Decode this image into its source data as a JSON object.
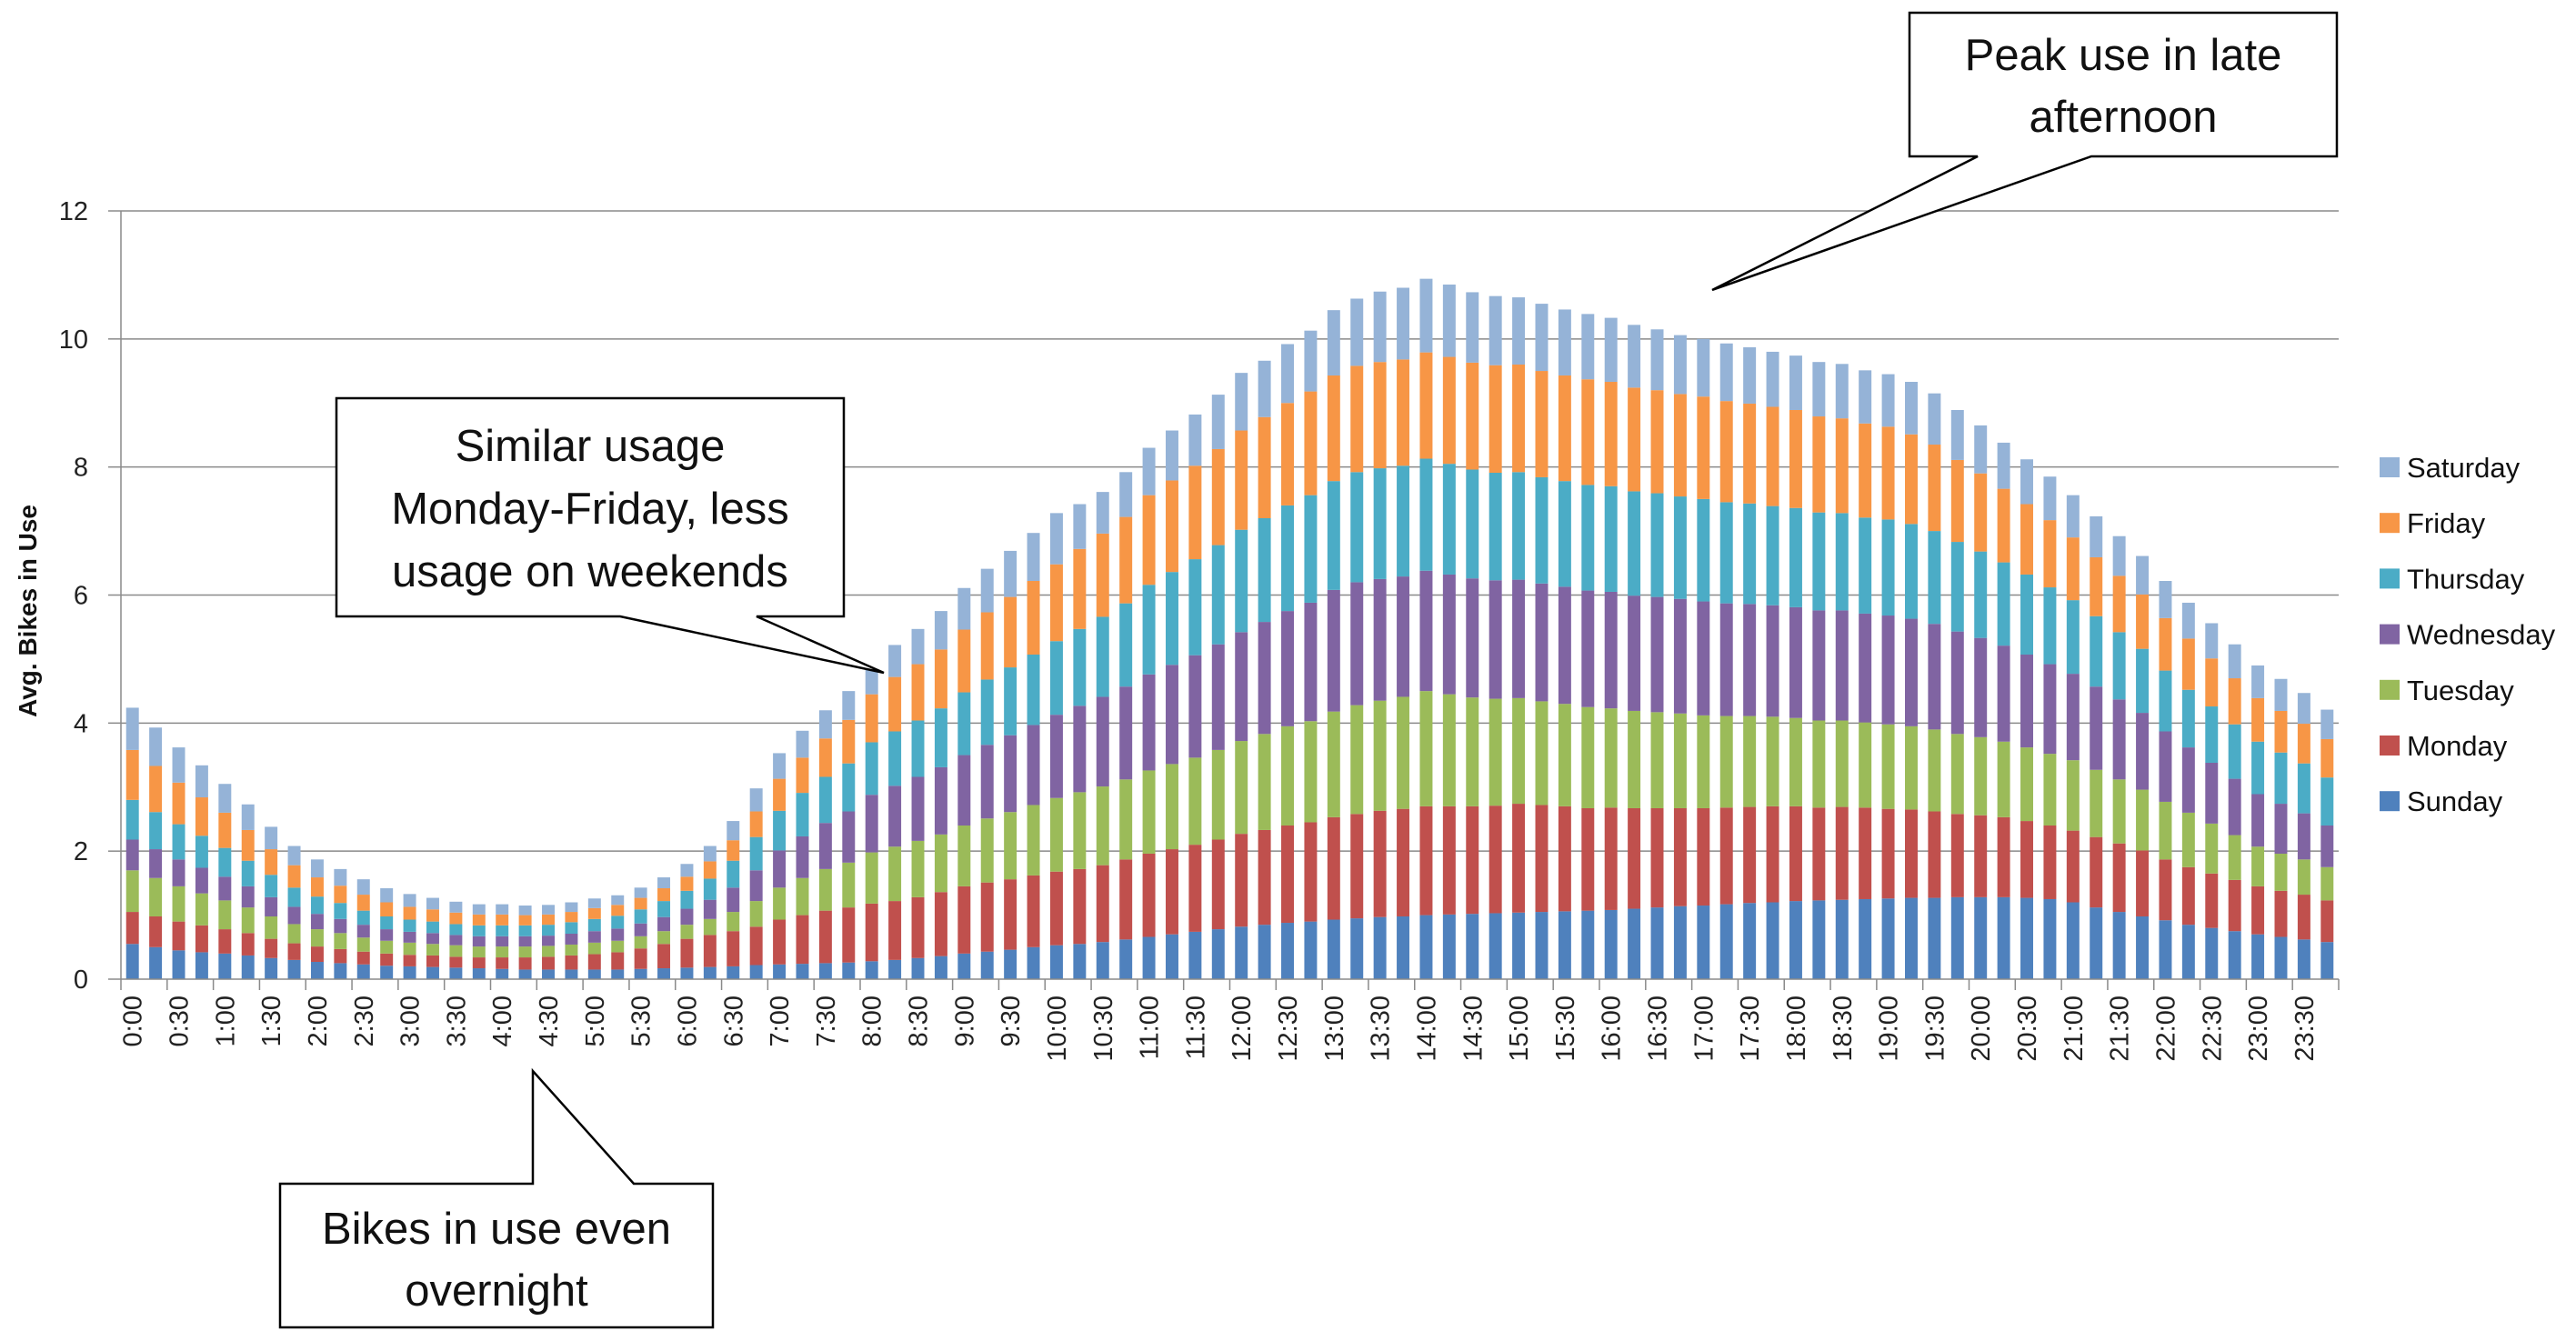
{
  "chart_data": {
    "type": "bar",
    "stacked": true,
    "title": "",
    "xlabel": "",
    "ylabel": "Avg. Bikes in Use",
    "ylim": [
      0,
      12
    ],
    "yticks": [
      0,
      2,
      4,
      6,
      8,
      10,
      12
    ],
    "grid": true,
    "legend_position": "right",
    "x_tick_labels": [
      "0:00",
      "0:30",
      "1:00",
      "1:30",
      "2:00",
      "2:30",
      "3:00",
      "3:30",
      "4:00",
      "4:30",
      "5:00",
      "5:30",
      "6:00",
      "6:30",
      "7:00",
      "7:30",
      "8:00",
      "8:30",
      "9:00",
      "9:30",
      "10:00",
      "10:30",
      "11:00",
      "11:30",
      "12:00",
      "12:30",
      "13:00",
      "13:30",
      "14:00",
      "14:30",
      "15:00",
      "15:30",
      "16:00",
      "16:30",
      "17:00",
      "17:30",
      "18:00",
      "18:30",
      "19:00",
      "19:30",
      "20:00",
      "20:30",
      "21:00",
      "21:30",
      "22:00",
      "22:30",
      "23:00",
      "23:30"
    ],
    "categories": [
      "0:00",
      "0:15",
      "0:30",
      "0:45",
      "1:00",
      "1:15",
      "1:30",
      "1:45",
      "2:00",
      "2:15",
      "2:30",
      "2:45",
      "3:00",
      "3:15",
      "3:30",
      "3:45",
      "4:00",
      "4:15",
      "4:30",
      "4:45",
      "5:00",
      "5:15",
      "5:30",
      "5:45",
      "6:00",
      "6:15",
      "6:30",
      "6:45",
      "7:00",
      "7:15",
      "7:30",
      "7:45",
      "8:00",
      "8:15",
      "8:30",
      "8:45",
      "9:00",
      "9:15",
      "9:30",
      "9:45",
      "10:00",
      "10:15",
      "10:30",
      "10:45",
      "11:00",
      "11:15",
      "11:30",
      "11:45",
      "12:00",
      "12:15",
      "12:30",
      "12:45",
      "13:00",
      "13:15",
      "13:30",
      "13:45",
      "14:00",
      "14:15",
      "14:30",
      "14:45",
      "15:00",
      "15:15",
      "15:30",
      "15:45",
      "16:00",
      "16:15",
      "16:30",
      "16:45",
      "17:00",
      "17:15",
      "17:30",
      "17:45",
      "18:00",
      "18:15",
      "18:30",
      "18:45",
      "19:00",
      "19:15",
      "19:30",
      "19:45",
      "20:00",
      "20:15",
      "20:30",
      "20:45",
      "21:00",
      "21:15",
      "21:30",
      "21:45",
      "22:00",
      "22:15",
      "22:30",
      "22:45",
      "23:00",
      "23:15",
      "23:30",
      "23:45"
    ],
    "series": [
      {
        "name": "Sunday",
        "color": "#4F81BD",
        "values": [
          0.55,
          0.5,
          0.45,
          0.42,
          0.4,
          0.37,
          0.33,
          0.3,
          0.27,
          0.25,
          0.23,
          0.21,
          0.2,
          0.19,
          0.18,
          0.17,
          0.16,
          0.15,
          0.15,
          0.15,
          0.15,
          0.15,
          0.16,
          0.17,
          0.18,
          0.19,
          0.2,
          0.22,
          0.23,
          0.24,
          0.25,
          0.26,
          0.28,
          0.3,
          0.33,
          0.36,
          0.4,
          0.43,
          0.46,
          0.5,
          0.53,
          0.55,
          0.58,
          0.62,
          0.66,
          0.7,
          0.74,
          0.78,
          0.82,
          0.85,
          0.88,
          0.9,
          0.93,
          0.95,
          0.97,
          0.98,
          1.0,
          1.01,
          1.02,
          1.03,
          1.04,
          1.05,
          1.06,
          1.07,
          1.08,
          1.1,
          1.12,
          1.14,
          1.15,
          1.17,
          1.19,
          1.2,
          1.22,
          1.23,
          1.24,
          1.25,
          1.26,
          1.27,
          1.27,
          1.28,
          1.28,
          1.28,
          1.27,
          1.25,
          1.2,
          1.12,
          1.05,
          0.98,
          0.92,
          0.85,
          0.8,
          0.75,
          0.7,
          0.66,
          0.62,
          0.58
        ]
      },
      {
        "name": "Monday",
        "color": "#C0504D",
        "values": [
          0.5,
          0.48,
          0.45,
          0.42,
          0.38,
          0.35,
          0.3,
          0.26,
          0.24,
          0.22,
          0.2,
          0.19,
          0.18,
          0.18,
          0.17,
          0.17,
          0.18,
          0.19,
          0.2,
          0.22,
          0.24,
          0.27,
          0.32,
          0.38,
          0.45,
          0.5,
          0.55,
          0.6,
          0.7,
          0.76,
          0.82,
          0.86,
          0.9,
          0.92,
          0.95,
          1.0,
          1.05,
          1.08,
          1.1,
          1.12,
          1.15,
          1.17,
          1.2,
          1.25,
          1.3,
          1.33,
          1.36,
          1.4,
          1.45,
          1.48,
          1.52,
          1.55,
          1.6,
          1.63,
          1.66,
          1.68,
          1.7,
          1.69,
          1.68,
          1.68,
          1.7,
          1.67,
          1.64,
          1.6,
          1.6,
          1.57,
          1.55,
          1.53,
          1.52,
          1.51,
          1.5,
          1.5,
          1.48,
          1.45,
          1.45,
          1.43,
          1.4,
          1.38,
          1.35,
          1.3,
          1.28,
          1.25,
          1.2,
          1.15,
          1.12,
          1.1,
          1.07,
          1.03,
          0.95,
          0.9,
          0.85,
          0.8,
          0.75,
          0.72,
          0.7,
          0.65
        ]
      },
      {
        "name": "Tuesday",
        "color": "#9BBB59",
        "values": [
          0.65,
          0.6,
          0.55,
          0.5,
          0.45,
          0.4,
          0.35,
          0.3,
          0.27,
          0.25,
          0.22,
          0.2,
          0.19,
          0.18,
          0.18,
          0.17,
          0.17,
          0.17,
          0.17,
          0.17,
          0.18,
          0.18,
          0.19,
          0.2,
          0.22,
          0.25,
          0.3,
          0.4,
          0.5,
          0.58,
          0.65,
          0.7,
          0.8,
          0.85,
          0.88,
          0.9,
          0.95,
          1.0,
          1.05,
          1.1,
          1.15,
          1.2,
          1.23,
          1.25,
          1.3,
          1.33,
          1.36,
          1.4,
          1.45,
          1.5,
          1.55,
          1.58,
          1.65,
          1.7,
          1.72,
          1.75,
          1.8,
          1.75,
          1.7,
          1.67,
          1.65,
          1.62,
          1.6,
          1.58,
          1.55,
          1.52,
          1.5,
          1.48,
          1.45,
          1.43,
          1.42,
          1.4,
          1.38,
          1.36,
          1.35,
          1.33,
          1.32,
          1.3,
          1.28,
          1.25,
          1.22,
          1.18,
          1.15,
          1.12,
          1.1,
          1.05,
          1.0,
          0.95,
          0.9,
          0.85,
          0.78,
          0.7,
          0.62,
          0.58,
          0.55,
          0.52
        ]
      },
      {
        "name": "Wednesday",
        "color": "#8064A2",
        "values": [
          0.48,
          0.45,
          0.42,
          0.4,
          0.37,
          0.33,
          0.3,
          0.27,
          0.24,
          0.22,
          0.2,
          0.18,
          0.17,
          0.17,
          0.16,
          0.16,
          0.16,
          0.16,
          0.16,
          0.17,
          0.18,
          0.19,
          0.2,
          0.22,
          0.25,
          0.3,
          0.38,
          0.48,
          0.58,
          0.65,
          0.72,
          0.8,
          0.9,
          0.95,
          1.0,
          1.05,
          1.1,
          1.15,
          1.2,
          1.25,
          1.3,
          1.35,
          1.4,
          1.45,
          1.5,
          1.55,
          1.6,
          1.65,
          1.7,
          1.75,
          1.8,
          1.85,
          1.9,
          1.92,
          1.9,
          1.88,
          1.88,
          1.87,
          1.86,
          1.85,
          1.85,
          1.84,
          1.83,
          1.82,
          1.82,
          1.8,
          1.8,
          1.79,
          1.78,
          1.76,
          1.75,
          1.74,
          1.73,
          1.72,
          1.72,
          1.7,
          1.7,
          1.68,
          1.65,
          1.6,
          1.55,
          1.5,
          1.45,
          1.4,
          1.35,
          1.3,
          1.25,
          1.2,
          1.1,
          1.02,
          0.95,
          0.88,
          0.82,
          0.78,
          0.72,
          0.65
        ]
      },
      {
        "name": "Thursday",
        "color": "#4BACC6",
        "values": [
          0.62,
          0.58,
          0.55,
          0.5,
          0.45,
          0.4,
          0.35,
          0.3,
          0.27,
          0.25,
          0.22,
          0.2,
          0.19,
          0.18,
          0.17,
          0.17,
          0.17,
          0.17,
          0.17,
          0.18,
          0.19,
          0.2,
          0.22,
          0.25,
          0.28,
          0.33,
          0.42,
          0.52,
          0.62,
          0.68,
          0.72,
          0.75,
          0.82,
          0.85,
          0.88,
          0.92,
          0.98,
          1.02,
          1.06,
          1.1,
          1.15,
          1.2,
          1.25,
          1.3,
          1.4,
          1.45,
          1.5,
          1.55,
          1.6,
          1.62,
          1.65,
          1.68,
          1.7,
          1.72,
          1.73,
          1.73,
          1.75,
          1.73,
          1.7,
          1.68,
          1.68,
          1.66,
          1.65,
          1.65,
          1.65,
          1.63,
          1.62,
          1.6,
          1.6,
          1.58,
          1.57,
          1.55,
          1.55,
          1.53,
          1.52,
          1.5,
          1.5,
          1.48,
          1.45,
          1.4,
          1.35,
          1.3,
          1.25,
          1.2,
          1.15,
          1.1,
          1.05,
          1.0,
          0.95,
          0.9,
          0.88,
          0.85,
          0.82,
          0.8,
          0.78,
          0.75
        ]
      },
      {
        "name": "Friday",
        "color": "#F79646",
        "values": [
          0.78,
          0.72,
          0.65,
          0.6,
          0.55,
          0.48,
          0.4,
          0.35,
          0.3,
          0.27,
          0.25,
          0.22,
          0.2,
          0.19,
          0.18,
          0.17,
          0.17,
          0.16,
          0.16,
          0.16,
          0.17,
          0.17,
          0.18,
          0.2,
          0.22,
          0.27,
          0.32,
          0.4,
          0.5,
          0.55,
          0.6,
          0.68,
          0.75,
          0.85,
          0.88,
          0.92,
          0.98,
          1.05,
          1.1,
          1.15,
          1.2,
          1.25,
          1.3,
          1.35,
          1.4,
          1.43,
          1.46,
          1.5,
          1.55,
          1.58,
          1.6,
          1.62,
          1.65,
          1.66,
          1.66,
          1.66,
          1.66,
          1.67,
          1.67,
          1.68,
          1.68,
          1.66,
          1.65,
          1.65,
          1.63,
          1.62,
          1.61,
          1.6,
          1.6,
          1.58,
          1.56,
          1.55,
          1.53,
          1.5,
          1.48,
          1.47,
          1.45,
          1.4,
          1.35,
          1.28,
          1.22,
          1.15,
          1.1,
          1.05,
          0.98,
          0.92,
          0.88,
          0.85,
          0.82,
          0.8,
          0.75,
          0.72,
          0.68,
          0.65,
          0.62,
          0.6
        ]
      },
      {
        "name": "Saturday",
        "color": "#95B3D7",
        "values": [
          0.66,
          0.6,
          0.55,
          0.5,
          0.45,
          0.4,
          0.35,
          0.3,
          0.28,
          0.26,
          0.24,
          0.22,
          0.2,
          0.18,
          0.17,
          0.16,
          0.16,
          0.15,
          0.15,
          0.15,
          0.15,
          0.15,
          0.16,
          0.17,
          0.2,
          0.24,
          0.3,
          0.36,
          0.4,
          0.42,
          0.44,
          0.45,
          0.38,
          0.5,
          0.55,
          0.6,
          0.65,
          0.68,
          0.72,
          0.75,
          0.8,
          0.7,
          0.65,
          0.7,
          0.74,
          0.78,
          0.8,
          0.85,
          0.9,
          0.88,
          0.92,
          0.95,
          1.02,
          1.05,
          1.1,
          1.12,
          1.15,
          1.13,
          1.1,
          1.08,
          1.05,
          1.05,
          1.03,
          1.02,
          1.0,
          0.98,
          0.95,
          0.92,
          0.9,
          0.9,
          0.88,
          0.86,
          0.85,
          0.85,
          0.85,
          0.83,
          0.82,
          0.82,
          0.8,
          0.78,
          0.75,
          0.72,
          0.7,
          0.68,
          0.66,
          0.64,
          0.62,
          0.6,
          0.58,
          0.56,
          0.55,
          0.53,
          0.51,
          0.5,
          0.48,
          0.46
        ]
      }
    ],
    "annotations": [
      "Peak use in late afternoon",
      "Similar usage Monday-Friday, less usage on weekends",
      "Bikes in use even overnight"
    ]
  },
  "callouts": {
    "peak": [
      "Peak use in late",
      "afternoon"
    ],
    "weekday": [
      "Similar usage",
      "Monday-Friday, less",
      "usage on weekends"
    ],
    "overnight": [
      "Bikes in use even",
      "overnight"
    ]
  }
}
